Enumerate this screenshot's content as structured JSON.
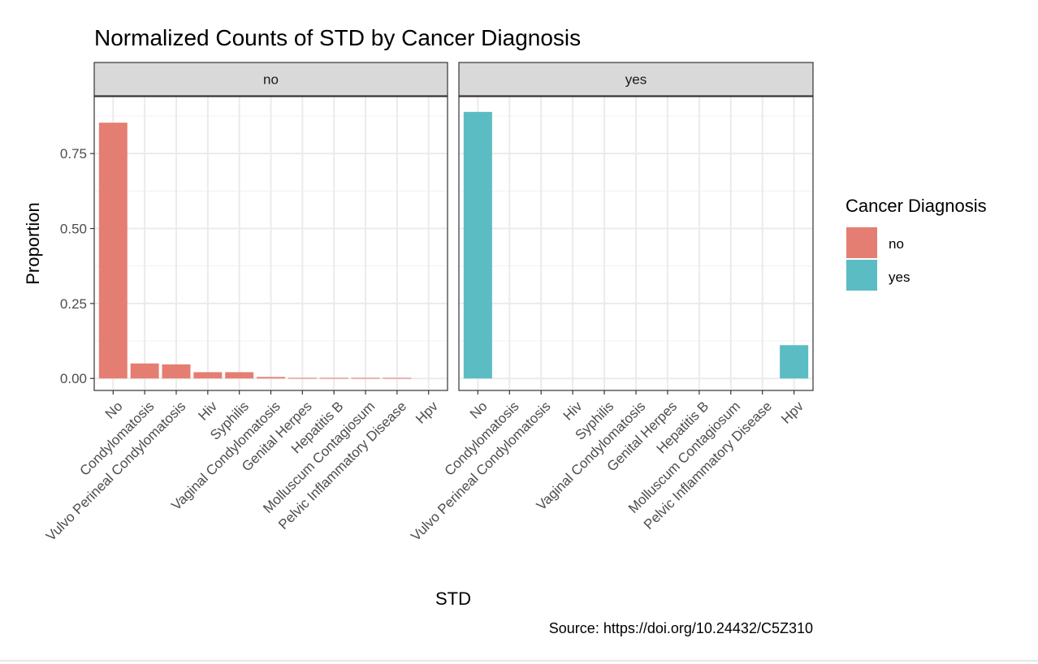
{
  "chart_data": {
    "type": "bar",
    "title": "Normalized Counts of STD by Cancer Diagnosis",
    "xlabel": "STD",
    "ylabel": "Proportion",
    "caption": "Source: https://doi.org/10.24432/C5Z310",
    "ylim": [
      -0.04,
      0.94
    ],
    "yticks": [
      "0.00",
      "0.25",
      "0.50",
      "0.75"
    ],
    "ytick_values": [
      0,
      0.25,
      0.5,
      0.75
    ],
    "grid": true,
    "legend": {
      "title": "Cancer Diagnosis",
      "position": "right",
      "entries": [
        {
          "label": "no",
          "color": "#E57E72"
        },
        {
          "label": "yes",
          "color": "#5BBCC4"
        }
      ]
    },
    "categories": [
      "No",
      "Condylomatosis",
      "Vulvo Perineal Condylomatosis",
      "Hiv",
      "Syphilis",
      "Vaginal Condylomatosis",
      "Genital Herpes",
      "Hepatitis B",
      "Molluscum Contagiosum",
      "Pelvic Inflammatory Disease",
      "Hpv"
    ],
    "facets": [
      {
        "label": "no",
        "color": "#E57E72",
        "values": [
          0.853,
          0.05,
          0.047,
          0.021,
          0.021,
          0.005,
          0.002,
          0.002,
          0.002,
          0.002,
          0.0
        ]
      },
      {
        "label": "yes",
        "color": "#5BBCC4",
        "values": [
          0.889,
          0.0,
          0.0,
          0.0,
          0.0,
          0.0,
          0.0,
          0.0,
          0.0,
          0.0,
          0.111
        ]
      }
    ]
  }
}
